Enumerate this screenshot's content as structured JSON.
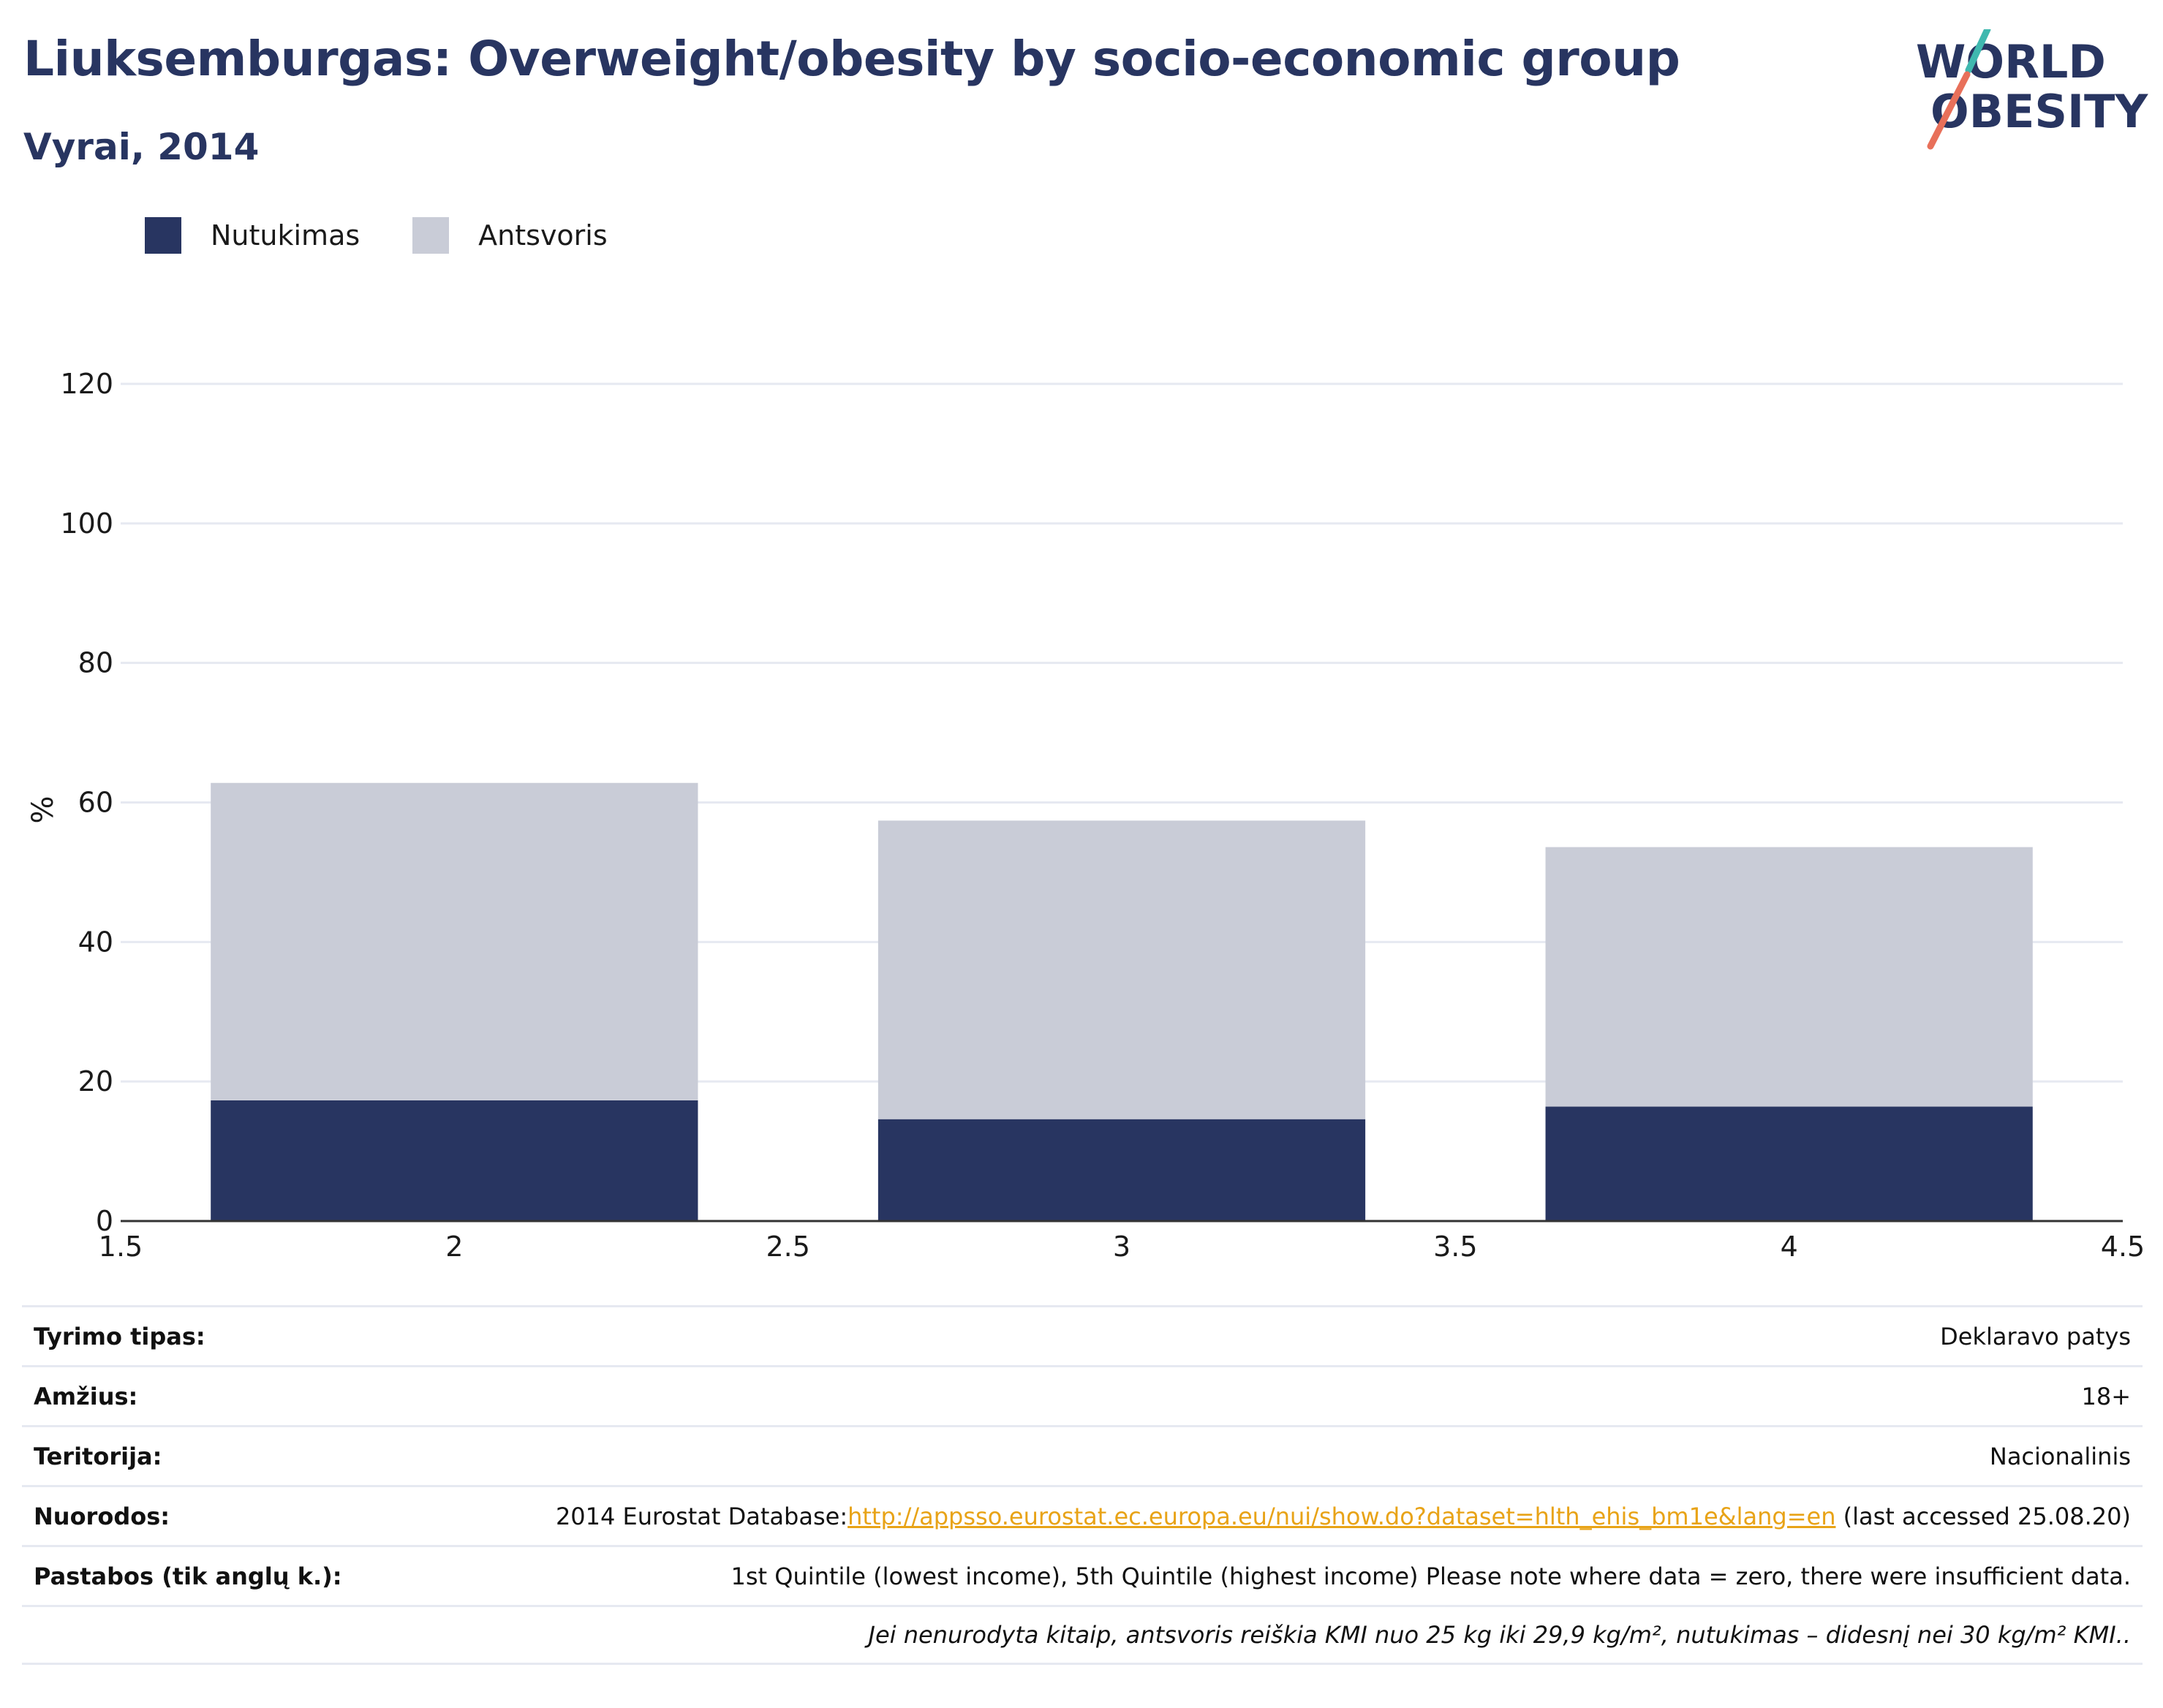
{
  "header": {
    "title": "Liuksemburgas: Overweight/obesity by socio-economic group",
    "subtitle": "Vyrai, 2014"
  },
  "logo": {
    "line1": "WORLD",
    "line2": "OBESITY",
    "accent_teal": "#3fb8af",
    "accent_coral": "#e8705a",
    "text_color": "#283561"
  },
  "legend": [
    {
      "label": "Nutukimas",
      "color": "#283561"
    },
    {
      "label": "Antsvoris",
      "color": "#c9ccd7"
    }
  ],
  "chart_data": {
    "type": "bar",
    "stacked": true,
    "x": [
      2,
      3,
      4
    ],
    "series": [
      {
        "name": "Nutukimas",
        "values": [
          17.3,
          14.6,
          16.4
        ],
        "color": "#283561"
      },
      {
        "name": "Antsvoris",
        "values": [
          45.5,
          42.8,
          37.2
        ],
        "color": "#c9ccd7"
      }
    ],
    "xlim": [
      1.5,
      4.5
    ],
    "ylim": [
      0,
      120
    ],
    "xticks": [
      "1.5",
      "2",
      "2.5",
      "3",
      "3.5",
      "4",
      "4.5"
    ],
    "xtick_values": [
      1.5,
      2,
      2.5,
      3,
      3.5,
      4,
      4.5
    ],
    "yticks": [
      "0",
      "20",
      "40",
      "60",
      "80",
      "100",
      "120"
    ],
    "ytick_values": [
      0,
      20,
      40,
      60,
      80,
      100,
      120
    ],
    "ylabel": "%",
    "xlabel": "",
    "grid": true,
    "legend_position": "top-left"
  },
  "info": {
    "rows": [
      {
        "key": "Tyrimo tipas:",
        "value": "Deklaravo patys"
      },
      {
        "key": "Amžius:",
        "value": "18+"
      },
      {
        "key": "Teritorija:",
        "value": "Nacionalinis"
      }
    ],
    "references": {
      "key": "Nuorodos:",
      "prefix": "2014 Eurostat Database:",
      "link": "http://appsso.eurostat.ec.europa.eu/nui/show.do?dataset=hlth_ehis_bm1e&lang=en",
      "suffix": " (last accessed 25.08.20)"
    },
    "notes": {
      "key": "Pastabos (tik anglų k.):",
      "value": "1st Quintile (lowest income), 5th Quintile (highest income) Please note where data = zero, there were insufficient data."
    },
    "footnote": "Jei nenurodyta kitaip, antsvoris reiškia KMI nuo 25 kg iki 29,9 kg/m², nutukimas – didesnį nei 30 kg/m² KMI.."
  }
}
